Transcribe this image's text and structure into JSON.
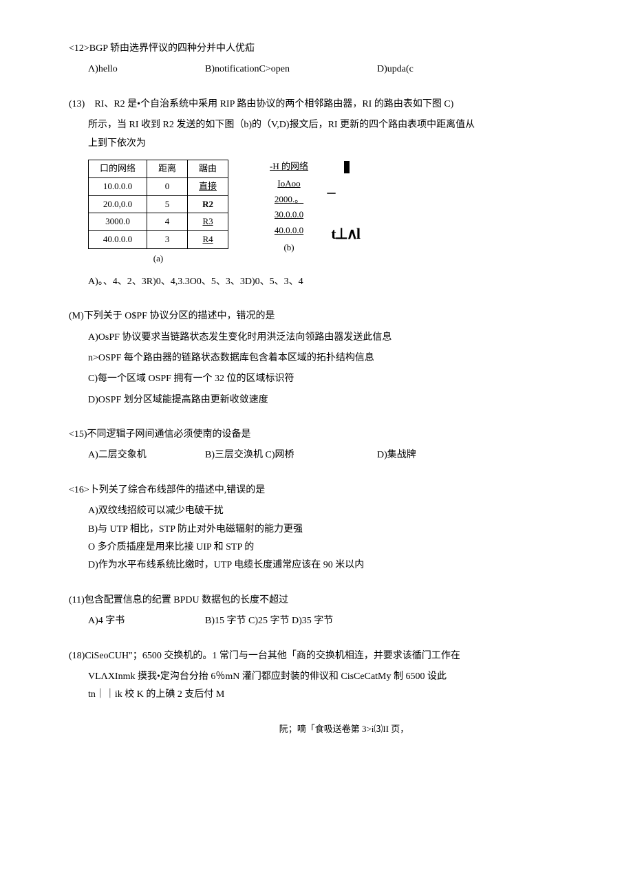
{
  "q12": {
    "text": "<12>BGP 轿由选界怦议的四种分并中人优疝",
    "opts": {
      "a": "Λ)hello",
      "b": "B)notificationC>open",
      "d": "D)upda(c"
    }
  },
  "q13": {
    "line1": "(13)　RI、R2 是•个自治系统中采用 RIP 路由协议的两个相邻路由器，RI 的路由表如下图 C)",
    "line2": "所示，当 RI 收到 R2 发送的如下图（b)的（V,D)报文后，RI 更新的四个路由表项中距离值从",
    "line3": "上到下依次为",
    "table_a": {
      "headers": [
        "口的网络",
        "距离",
        "踞由"
      ],
      "rows": [
        [
          "10.0.0.0",
          "0",
          "直接"
        ],
        [
          "20.0,0.0",
          "5",
          "R2"
        ],
        [
          "3000.0",
          "4",
          "R3"
        ],
        [
          "40.0.0.0",
          "3",
          "R4"
        ]
      ],
      "caption": "(a)"
    },
    "table_b": {
      "header": "-H 的网络",
      "rows": [
        "IoAoo",
        "2000.。",
        "30.0.0.0",
        "40.0.0.0"
      ],
      "caption": "(b)",
      "dash": "一",
      "glyph": "t⊥∧l"
    },
    "answer": "A)。、4、2、3R)0、4,3.3O0、5、3、3D)0、5、3、4"
  },
  "q14": {
    "text": "(M)下列关于 O$PF 协议分区的描述中，错况的是",
    "opts": {
      "a": "A)OsPF 协议要求当链路状态发生变化时用洪泛法向领路由器发送此信息",
      "b": "n>OSPF 每个路由器的链路状态数据库包含着本区域的拓扑结构信息",
      "c": "C)每一个区域 OSPF 拥有一个 32 位的区域标识符",
      "d": "D)OSPF 划分区域能提高路由更新收敛速度"
    }
  },
  "q15": {
    "text": "<15)不同逻辑子网间通信必须使南的设备是",
    "opts": {
      "a": "A)二层交象机",
      "b": "B)三层交涣机 C)网桥",
      "d": "D)集战牌"
    }
  },
  "q16": {
    "text": "<16>卜列关了综合布线部件的描述中,错误的是",
    "opts": {
      "a": "A)双纹线招絞可以减少电破干扰",
      "b": "B)与 UTP 相比，STP 防止对外电磁辐射的能力更强",
      "c": "O 多介质插座是用来比接 UIP 和 STP 的",
      "d": "D)作为水平布线系统比缴时，UTP 电缆长度逋常应该在 90 米以内"
    }
  },
  "q17": {
    "text": "(11)包含配置信息的纪置 BPDU 数据包的长度不超过",
    "opts": {
      "a": "A)4 字书",
      "b": "B)15 字节 C)25 字节 D)35 字节"
    }
  },
  "q18": {
    "line1": "(18)CiSeoCUH\"；6500 交换机的。1 常门与一台其他「商的交换机相连，并要求该循门工作在",
    "line2": "VLΛXInmk 摸我•定沟台分抬 6％mN 灌门都应封装的俳议和 CisCeCatMy 制 6500 设此",
    "line3": "tn｜｜ik 校 K 的上碘 2 支后付 M"
  },
  "footer": "阮；嘀「食吸送卷第 3>i⑶II 页，"
}
